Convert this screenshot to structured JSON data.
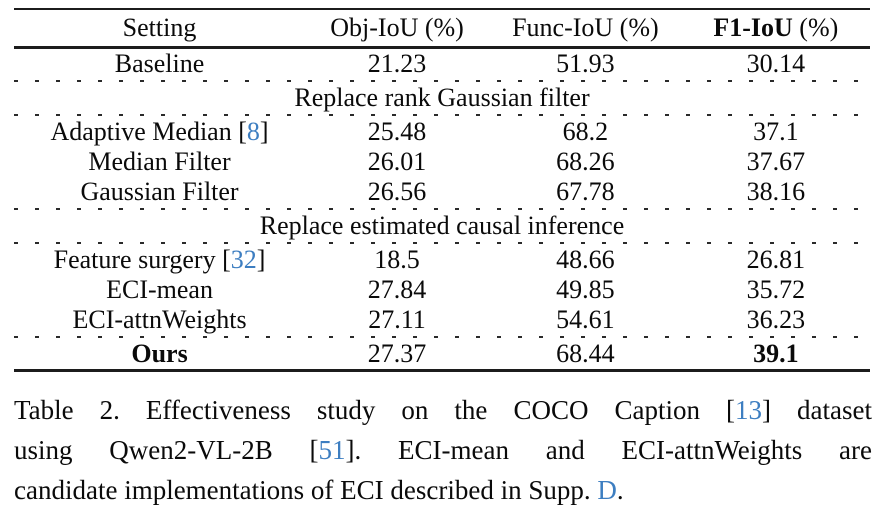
{
  "colors": {
    "link": "#3d7ec1",
    "rule": "#1c1c1c"
  },
  "table": {
    "headers": {
      "setting": "Setting",
      "obj": "Obj-IoU (%)",
      "func": "Func-IoU (%)",
      "f1_bold": "F1-IoU",
      "f1_rest": " (%)"
    },
    "sections": {
      "rank": "Replace rank Gaussian filter",
      "eci": "Replace estimated causal inference"
    },
    "rows": [
      {
        "pre": "Baseline",
        "obj": "21.23",
        "func": "51.93",
        "f1": "30.14"
      },
      {
        "pre": "Adaptive Median [",
        "link": "8",
        "post": "]",
        "obj": "25.48",
        "func": "68.2",
        "f1": "37.1"
      },
      {
        "pre": "Median Filter",
        "obj": "26.01",
        "func": "68.26",
        "f1": "37.67"
      },
      {
        "pre": "Gaussian Filter",
        "obj": "26.56",
        "func": "67.78",
        "f1": "38.16"
      },
      {
        "pre": "Feature surgery [",
        "link": "32",
        "post": "]",
        "obj": "18.5",
        "func": "48.66",
        "f1": "26.81"
      },
      {
        "pre": "ECI-mean",
        "obj": "27.84",
        "func": "49.85",
        "f1": "35.72"
      },
      {
        "pre": "ECI-attnWeights",
        "obj": "27.11",
        "func": "54.61",
        "f1": "36.23"
      },
      {
        "pre": "Ours",
        "obj": "27.37",
        "func": "68.44",
        "f1": "39.1"
      }
    ]
  },
  "caption": {
    "line1": {
      "a": "Table 2.  Effectiveness study on the COCO Caption [",
      "link": "13",
      "b": "] dataset"
    },
    "line2": {
      "a": "using Qwen2-VL-2B [",
      "link": "51",
      "b": "].  ECI-mean and ECI-attnWeights are"
    },
    "line3": {
      "a": "candidate implementations of ECI described in Supp. ",
      "link": "D",
      "b": "."
    }
  }
}
